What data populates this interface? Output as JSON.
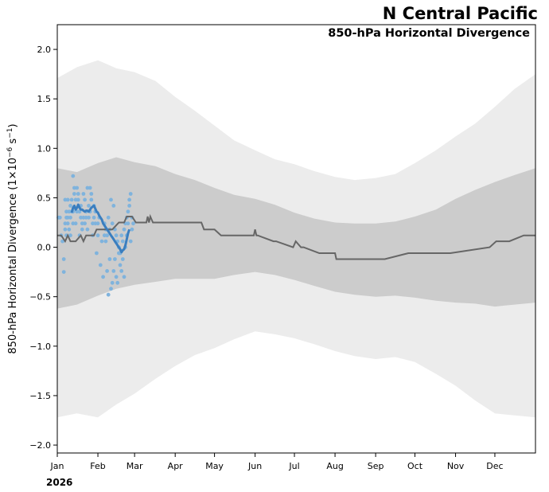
{
  "chart_data": {
    "type": "line",
    "title": "N Central Pacific",
    "subtitle": "850-hPa Horizontal Divergence",
    "ylabel_main": "850-hPa Horizontal Divergence (1×10",
    "ylabel_exp1": "−6",
    "ylabel_mid": " s",
    "ylabel_exp2": "−1",
    "ylabel_end": ")",
    "year_label": "2026",
    "ylim": [
      -2.08,
      2.25
    ],
    "xlim": [
      0,
      365
    ],
    "yticks": [
      2.0,
      1.5,
      1.0,
      0.5,
      0.0,
      -0.5,
      -1.0,
      -1.5,
      -2.0
    ],
    "ytick_labels": [
      "2.0",
      "1.5",
      "1.0",
      "0.5",
      "0.0",
      "−0.5",
      "−1.0",
      "−1.5",
      "−2.0"
    ],
    "xticks": [
      0,
      31,
      59,
      90,
      120,
      151,
      181,
      212,
      243,
      273,
      304,
      334
    ],
    "xtick_labels": [
      "Jan",
      "Feb",
      "Mar",
      "Apr",
      "May",
      "Jun",
      "Jul",
      "Aug",
      "Sep",
      "Oct",
      "Nov",
      "Dec"
    ],
    "colors": {
      "outer_band": "#ececec",
      "inner_band": "#cccccc",
      "climatology_line": "#666666",
      "observed_line": "#3a7ebf",
      "observed_points": "#7fb3dd"
    },
    "outer_band": {
      "x": [
        0,
        15,
        31,
        45,
        59,
        75,
        90,
        105,
        120,
        135,
        151,
        166,
        181,
        196,
        212,
        227,
        243,
        258,
        273,
        289,
        304,
        319,
        334,
        349,
        365
      ],
      "upper": [
        1.71,
        1.82,
        1.89,
        1.81,
        1.77,
        1.68,
        1.52,
        1.38,
        1.23,
        1.08,
        0.98,
        0.89,
        0.84,
        0.77,
        0.71,
        0.68,
        0.7,
        0.74,
        0.85,
        0.98,
        1.12,
        1.25,
        1.42,
        1.6,
        1.75
      ],
      "lower": [
        -1.72,
        -1.68,
        -1.72,
        -1.59,
        -1.48,
        -1.33,
        -1.2,
        -1.09,
        -1.02,
        -0.93,
        -0.85,
        -0.88,
        -0.92,
        -0.98,
        -1.05,
        -1.1,
        -1.13,
        -1.11,
        -1.16,
        -1.28,
        -1.4,
        -1.55,
        -1.68,
        -1.7,
        -1.72
      ]
    },
    "inner_band": {
      "x": [
        0,
        15,
        31,
        45,
        59,
        75,
        90,
        105,
        120,
        135,
        151,
        166,
        181,
        196,
        212,
        227,
        243,
        258,
        273,
        289,
        304,
        319,
        334,
        349,
        365
      ],
      "upper": [
        0.8,
        0.76,
        0.85,
        0.91,
        0.86,
        0.82,
        0.74,
        0.68,
        0.6,
        0.53,
        0.49,
        0.43,
        0.35,
        0.29,
        0.25,
        0.24,
        0.24,
        0.26,
        0.31,
        0.38,
        0.49,
        0.58,
        0.66,
        0.73,
        0.8
      ],
      "lower": [
        -0.62,
        -0.58,
        -0.49,
        -0.42,
        -0.38,
        -0.35,
        -0.32,
        -0.32,
        -0.32,
        -0.28,
        -0.25,
        -0.28,
        -0.33,
        -0.39,
        -0.45,
        -0.48,
        -0.5,
        -0.49,
        -0.51,
        -0.54,
        -0.56,
        -0.57,
        -0.6,
        -0.58,
        -0.56
      ]
    },
    "climatology": {
      "x": [
        0,
        3,
        6,
        8,
        10,
        12,
        14,
        18,
        20,
        22,
        28,
        30,
        34,
        36,
        38,
        40,
        42,
        47,
        48,
        51,
        53,
        55,
        57,
        60,
        65,
        68,
        69,
        70,
        71,
        73,
        80,
        90,
        100,
        110,
        112,
        120,
        125,
        127,
        150,
        151,
        152,
        153,
        165,
        167,
        180,
        182,
        186,
        188,
        200,
        203,
        212,
        213,
        235,
        250,
        268,
        300,
        330,
        335,
        345,
        356,
        358,
        360,
        365
      ],
      "y": [
        0.12,
        0.12,
        0.06,
        0.12,
        0.06,
        0.06,
        0.06,
        0.12,
        0.06,
        0.12,
        0.12,
        0.18,
        0.18,
        0.18,
        0.18,
        0.18,
        0.18,
        0.25,
        0.25,
        0.25,
        0.31,
        0.31,
        0.31,
        0.25,
        0.25,
        0.25,
        0.31,
        0.25,
        0.31,
        0.25,
        0.25,
        0.25,
        0.25,
        0.25,
        0.18,
        0.18,
        0.12,
        0.12,
        0.12,
        0.18,
        0.12,
        0.12,
        0.06,
        0.06,
        0.0,
        0.06,
        0.0,
        0.0,
        -0.06,
        -0.06,
        -0.06,
        -0.12,
        -0.12,
        -0.12,
        -0.06,
        -0.06,
        0.0,
        0.06,
        0.06,
        0.12,
        0.12,
        0.12,
        0.12
      ]
    },
    "observed_line": {
      "x": [
        11,
        12,
        13,
        14,
        15,
        16,
        17,
        18,
        19,
        20,
        21,
        22,
        23,
        24,
        25,
        26,
        27,
        28,
        29,
        30,
        31,
        32,
        33,
        34,
        35,
        36,
        37,
        38,
        39,
        40,
        41,
        42,
        43,
        44,
        45,
        46,
        47,
        48,
        49,
        50,
        51,
        52,
        53,
        54,
        55
      ],
      "y": [
        0.35,
        0.4,
        0.42,
        0.38,
        0.4,
        0.43,
        0.4,
        0.38,
        0.38,
        0.37,
        0.36,
        0.37,
        0.37,
        0.36,
        0.38,
        0.4,
        0.41,
        0.42,
        0.39,
        0.36,
        0.35,
        0.32,
        0.3,
        0.28,
        0.24,
        0.22,
        0.2,
        0.18,
        0.16,
        0.14,
        0.12,
        0.1,
        0.08,
        0.06,
        0.04,
        0.02,
        0.0,
        -0.02,
        -0.05,
        -0.03,
        -0.02,
        0.02,
        0.08,
        0.14,
        0.18
      ]
    },
    "observed_points": {
      "x": [
        1,
        2,
        3,
        4,
        5,
        5,
        6,
        6,
        6,
        7,
        7,
        7,
        8,
        8,
        8,
        9,
        9,
        10,
        10,
        10,
        11,
        11,
        12,
        12,
        12,
        13,
        13,
        14,
        14,
        15,
        15,
        16,
        16,
        17,
        17,
        18,
        18,
        19,
        19,
        20,
        20,
        21,
        21,
        22,
        22,
        23,
        23,
        24,
        24,
        25,
        25,
        26,
        26,
        27,
        27,
        28,
        28,
        29,
        29,
        30,
        31,
        31,
        32,
        33,
        34,
        35,
        36,
        36,
        37,
        37,
        38,
        38,
        39,
        39,
        40,
        40,
        41,
        41,
        42,
        42,
        43,
        43,
        44,
        44,
        45,
        45,
        46,
        46,
        47,
        47,
        48,
        48,
        49,
        49,
        50,
        50,
        51,
        51,
        52,
        52,
        53,
        53,
        54,
        54,
        55,
        55,
        56,
        56,
        57,
        57,
        58
      ],
      "y": [
        0.3,
        0.3,
        0.12,
        0.06,
        -0.12,
        -0.25,
        0.18,
        0.24,
        0.48,
        0.3,
        0.36,
        0.12,
        0.24,
        0.3,
        0.48,
        0.36,
        0.18,
        0.3,
        0.42,
        0.12,
        0.48,
        0.36,
        0.72,
        0.36,
        0.24,
        0.54,
        0.6,
        0.24,
        0.48,
        0.6,
        0.36,
        0.54,
        0.48,
        0.36,
        0.12,
        0.3,
        0.42,
        0.18,
        0.24,
        0.54,
        0.3,
        0.48,
        0.24,
        0.3,
        0.36,
        0.18,
        0.6,
        0.42,
        0.3,
        0.36,
        0.6,
        0.54,
        0.48,
        0.24,
        0.12,
        0.42,
        0.3,
        0.36,
        0.24,
        -0.06,
        0.24,
        0.12,
        0.3,
        -0.18,
        0.06,
        -0.3,
        0.12,
        0.24,
        0.18,
        0.06,
        0.12,
        -0.24,
        0.3,
        -0.48,
        0.18,
        -0.12,
        0.48,
        -0.42,
        0.24,
        -0.36,
        0.42,
        -0.24,
        0.18,
        -0.12,
        0.12,
        -0.3,
        0.06,
        -0.36,
        -0.06,
        0.0,
        -0.18,
        -0.06,
        0.12,
        -0.24,
        -0.12,
        0.06,
        -0.3,
        0.18,
        0.24,
        0.0,
        0.3,
        0.12,
        0.36,
        0.24,
        0.42,
        0.48,
        0.54,
        0.06,
        0.3,
        0.18,
        0.24
      ]
    }
  }
}
